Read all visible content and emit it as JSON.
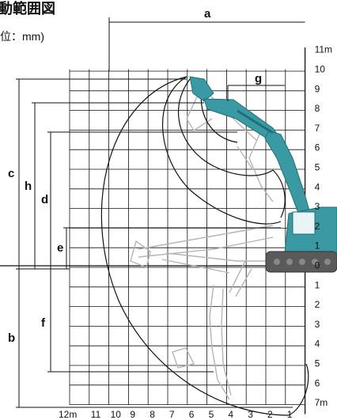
{
  "header": {
    "title": "動範囲図",
    "unit": "位：mm)"
  },
  "dimension_labels": {
    "a": "a",
    "b": "b",
    "c": "c",
    "d": "d",
    "e": "e",
    "f": "f",
    "g": "g",
    "h": "h"
  },
  "y_axis": {
    "labels": [
      "11m",
      "10",
      "9",
      "8",
      "7",
      "6",
      "5",
      "4",
      "3",
      "2",
      "1",
      "0",
      "1",
      "2",
      "3",
      "4",
      "5",
      "6",
      "7m"
    ]
  },
  "x_axis": {
    "labels": [
      "12m",
      "11",
      "10",
      "9",
      "8",
      "7",
      "6",
      "5",
      "4",
      "3",
      "2",
      "1"
    ]
  },
  "colors": {
    "grid": "#111111",
    "arm": "#3a9aa3",
    "arm_dark": "#1f6f76",
    "track": "#555555",
    "ghost_arm": "#bbbbbb"
  }
}
